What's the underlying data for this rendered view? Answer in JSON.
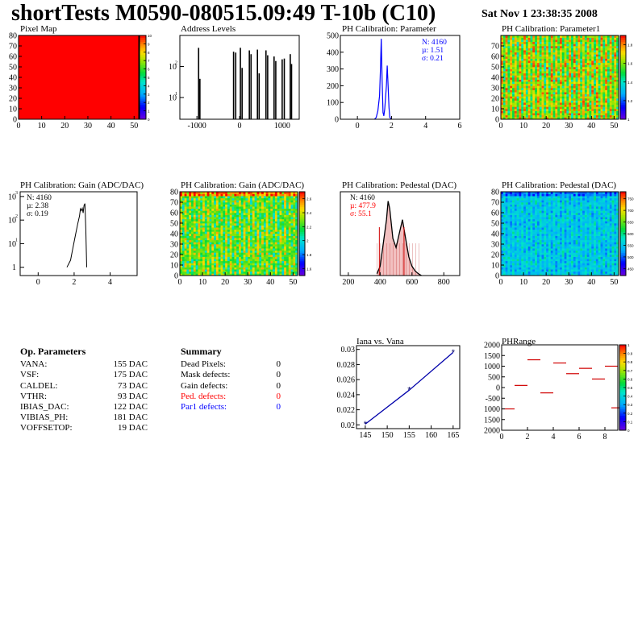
{
  "header": {
    "title": "shortTests M0590-080515.09:49 T-10b (C10)",
    "datetime": "Sat Nov  1 23:38:35 2008"
  },
  "panels": {
    "pixel_map": {
      "title": "Pixel Map",
      "xticks": [
        "0",
        "10",
        "20",
        "30",
        "40",
        "50"
      ],
      "yticks": [
        "0",
        "10",
        "20",
        "30",
        "40",
        "50",
        "60",
        "70",
        "80"
      ],
      "zticks": [
        "0",
        "1",
        "2",
        "3",
        "4",
        "5",
        "6",
        "7",
        "8",
        "9",
        "10"
      ],
      "fill_color": "#ff0000"
    },
    "address_levels": {
      "title": "Address Levels",
      "xticks": [
        "-1000",
        "0",
        "1000"
      ],
      "yticks": [
        "10",
        "10"
      ]
    },
    "ph_param": {
      "title": "PH Calibration: Parameter",
      "xticks": [
        "0",
        "2",
        "4",
        "6"
      ],
      "yticks": [
        "0",
        "100",
        "200",
        "300",
        "400",
        "500"
      ],
      "stats": [
        "N: 4160",
        "µ: 1.51",
        "σ: 0.21"
      ],
      "stats_color": "#0000ff"
    },
    "ph_param1": {
      "title": "PH Calibration: Parameter1",
      "xticks": [
        "0",
        "10",
        "20",
        "30",
        "40",
        "50"
      ],
      "yticks": [
        "0",
        "10",
        "20",
        "30",
        "40",
        "50",
        "60",
        "70"
      ],
      "zticks": [
        "1",
        "1.2",
        "1.4",
        "1.6",
        "1.8"
      ]
    },
    "gain_hist": {
      "title": "PH Calibration: Gain (ADC/DAC)",
      "xticks": [
        "0",
        "2",
        "4"
      ],
      "yticks": [
        "1",
        "10",
        "10",
        "10"
      ],
      "stats": [
        "N: 4160",
        "µ: 2.38",
        "σ: 0.19"
      ]
    },
    "gain_map": {
      "title": "PH Calibration: Gain (ADC/DAC)",
      "xticks": [
        "0",
        "10",
        "20",
        "30",
        "40",
        "50"
      ],
      "yticks": [
        "0",
        "10",
        "20",
        "30",
        "40",
        "50",
        "60",
        "70",
        "80"
      ],
      "zticks": [
        "1.6",
        "1.8",
        "2",
        "2.2",
        "2.4",
        "2.6"
      ]
    },
    "ped_hist": {
      "title": "PH Calibration: Pedestal (DAC)",
      "xticks": [
        "200",
        "400",
        "600",
        "800"
      ],
      "stats": [
        "N: 4160",
        "µ: 477.9",
        "σ: 55.1"
      ]
    },
    "ped_map": {
      "title": "PH Calibration: Pedestal (DAC)",
      "xticks": [
        "0",
        "10",
        "20",
        "30",
        "40",
        "50"
      ],
      "yticks": [
        "0",
        "10",
        "20",
        "30",
        "40",
        "50",
        "60",
        "70",
        "80"
      ],
      "zticks": [
        "450",
        "500",
        "550",
        "600",
        "650",
        "700",
        "750"
      ]
    },
    "iana": {
      "title": "Iana vs. Vana",
      "xticks": [
        "145",
        "150",
        "155",
        "160",
        "165"
      ],
      "yticks": [
        "0.02",
        "0.022",
        "0.024",
        "0.026",
        "0.028",
        "0.03"
      ]
    },
    "phrange": {
      "title": "PHRange",
      "xticks": [
        "0",
        "2",
        "4",
        "6",
        "8"
      ],
      "yticks": [
        "2000",
        "1500",
        "1000",
        "500",
        "0",
        "-500",
        "1000",
        "1500",
        "2000"
      ],
      "zticks": [
        "0",
        "0.1",
        "0.2",
        "0.3",
        "0.4",
        "0.5",
        "0.6",
        "0.7",
        "0.8",
        "0.9",
        "1"
      ]
    }
  },
  "op_parameters": {
    "header": "Op. Parameters",
    "rows": [
      {
        "key": "VANA:",
        "value": "155 DAC"
      },
      {
        "key": "VSF:",
        "value": "175 DAC"
      },
      {
        "key": "CALDEL:",
        "value": "73 DAC"
      },
      {
        "key": "VTHR:",
        "value": "93 DAC"
      },
      {
        "key": "IBIAS_DAC:",
        "value": "122 DAC"
      },
      {
        "key": "VIBIAS_PH:",
        "value": "181 DAC"
      },
      {
        "key": "VOFFSETOP:",
        "value": "19 DAC"
      }
    ]
  },
  "summary": {
    "header": "Summary",
    "rows": [
      {
        "key": "Dead Pixels:",
        "value": "0",
        "color": "black"
      },
      {
        "key": "Mask defects:",
        "value": "0",
        "color": "black"
      },
      {
        "key": "Gain defects:",
        "value": "0",
        "color": "black"
      },
      {
        "key": "Ped. defects:",
        "value": "0",
        "color": "red"
      },
      {
        "key": "Par1 defects:",
        "value": "0",
        "color": "blue"
      }
    ]
  },
  "chart_data": [
    {
      "type": "heatmap",
      "title": "Pixel Map",
      "xlim": [
        0,
        52
      ],
      "ylim": [
        0,
        80
      ],
      "zlim": [
        0,
        10
      ],
      "uniform_value": 10
    },
    {
      "type": "bar",
      "title": "Address Levels",
      "log_y": true,
      "xlim": [
        -1400,
        1400
      ],
      "peaks": [
        {
          "x": -960,
          "y": 400
        },
        {
          "x": -930,
          "y": 40
        },
        {
          "x": -140,
          "y": 300
        },
        {
          "x": -90,
          "y": 280
        },
        {
          "x": 20,
          "y": 400
        },
        {
          "x": 60,
          "y": 90
        },
        {
          "x": 230,
          "y": 330
        },
        {
          "x": 270,
          "y": 250
        },
        {
          "x": 420,
          "y": 350
        },
        {
          "x": 460,
          "y": 60
        },
        {
          "x": 620,
          "y": 330
        },
        {
          "x": 660,
          "y": 230
        },
        {
          "x": 810,
          "y": 210
        },
        {
          "x": 850,
          "y": 150
        },
        {
          "x": 1000,
          "y": 170
        },
        {
          "x": 1050,
          "y": 180
        },
        {
          "x": 1190,
          "y": 250
        },
        {
          "x": 1220,
          "y": 120
        }
      ]
    },
    {
      "type": "bar",
      "title": "PH Calibration: Parameter",
      "xlim": [
        -1,
        6
      ],
      "ylim": [
        0,
        500
      ],
      "x": [
        1.0,
        1.1,
        1.2,
        1.3,
        1.35,
        1.4,
        1.45,
        1.5,
        1.55,
        1.6,
        1.7,
        1.75,
        1.8,
        1.85,
        1.9,
        2.0
      ],
      "y": [
        0,
        10,
        50,
        140,
        300,
        480,
        230,
        40,
        20,
        60,
        200,
        320,
        200,
        70,
        10,
        0
      ]
    },
    {
      "type": "heatmap",
      "title": "PH Calibration: Parameter1",
      "xlim": [
        0,
        52
      ],
      "ylim": [
        0,
        80
      ],
      "zlim": [
        1,
        1.9
      ],
      "pattern": "alternating-columns"
    },
    {
      "type": "line",
      "title": "PH Calibration: Gain (ADC/DAC)",
      "log_y": true,
      "xlim": [
        -1,
        5.5
      ],
      "x": [
        1.6,
        1.8,
        1.9,
        2.0,
        2.1,
        2.2,
        2.3,
        2.35,
        2.4,
        2.45,
        2.5,
        2.55,
        2.6,
        2.65,
        2.7
      ],
      "y": [
        1,
        2,
        5,
        12,
        30,
        70,
        150,
        300,
        250,
        320,
        200,
        420,
        500,
        40,
        1
      ]
    },
    {
      "type": "heatmap",
      "title": "PH Calibration: Gain (ADC/DAC)",
      "xlim": [
        0,
        52
      ],
      "ylim": [
        0,
        80
      ],
      "zlim": [
        1.5,
        2.7
      ],
      "pattern": "alternating-columns"
    },
    {
      "type": "bar",
      "title": "PH Calibration: Pedestal (DAC)",
      "xlim": [
        150,
        900
      ],
      "x": [
        380,
        400,
        420,
        440,
        450,
        460,
        480,
        500,
        520,
        540,
        560,
        580,
        600,
        620,
        640,
        660
      ],
      "y": [
        2,
        10,
        35,
        60,
        80,
        72,
        40,
        30,
        45,
        60,
        40,
        20,
        10,
        5,
        2,
        0
      ]
    },
    {
      "type": "heatmap",
      "title": "PH Calibration: Pedestal (DAC)",
      "xlim": [
        0,
        52
      ],
      "ylim": [
        0,
        80
      ],
      "zlim": [
        420,
        780
      ],
      "pattern": "alternating-columns"
    },
    {
      "type": "line",
      "title": "Iana vs. Vana",
      "xlim": [
        143,
        166.5
      ],
      "ylim": [
        0.0195,
        0.0305
      ],
      "x": [
        145,
        155,
        165
      ],
      "y": [
        0.0201,
        0.0246,
        0.0296
      ]
    },
    {
      "type": "scatter",
      "title": "PHRange",
      "xlim": [
        0,
        9
      ],
      "ylim": [
        -2000,
        2000
      ],
      "segments": [
        {
          "x": 0,
          "y": -1000
        },
        {
          "x": 1,
          "y": 100
        },
        {
          "x": 2,
          "y": 1300
        },
        {
          "x": 3,
          "y": -250
        },
        {
          "x": 4,
          "y": 1150
        },
        {
          "x": 5,
          "y": 650
        },
        {
          "x": 6,
          "y": 900
        },
        {
          "x": 7,
          "y": 400
        },
        {
          "x": 8,
          "y": 1000
        },
        {
          "x": 8.5,
          "y": -950
        }
      ]
    }
  ]
}
